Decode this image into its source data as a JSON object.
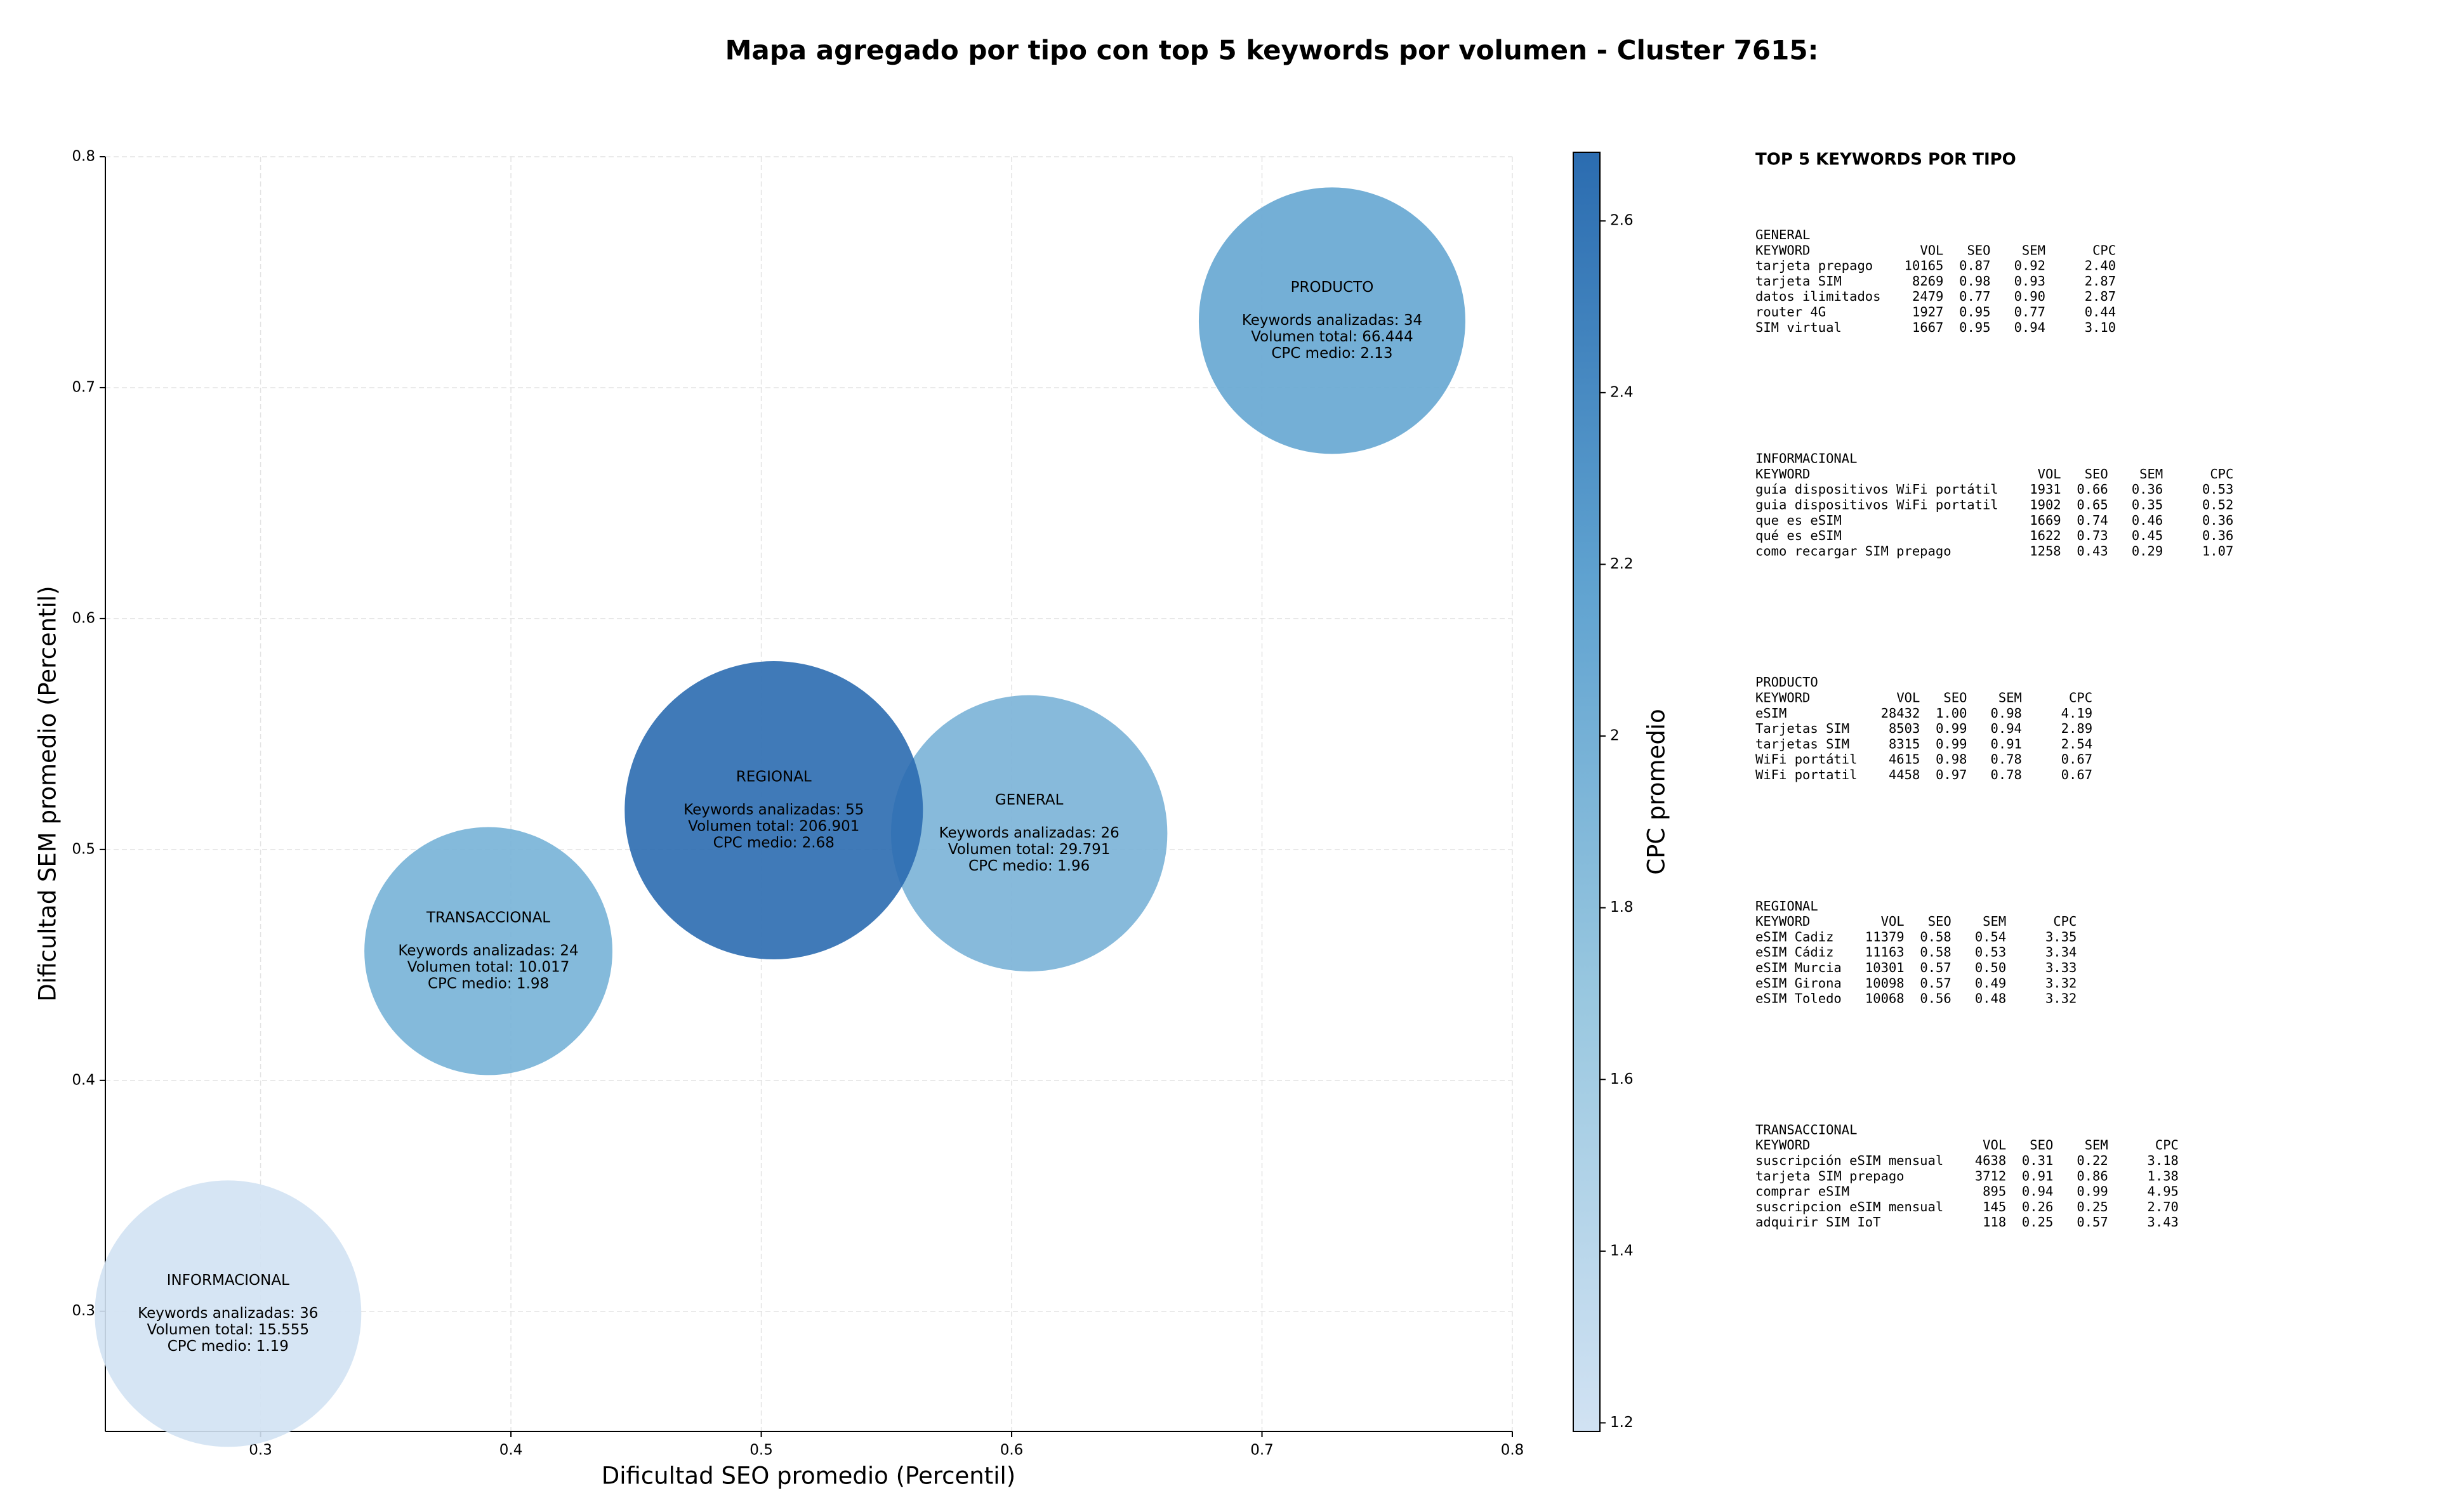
{
  "chart_data": {
    "type": "bubble",
    "title": "Mapa agregado por tipo con top 5 keywords por volumen - Cluster 7615:",
    "x_label": "Dificultad SEO promedio (Percentil)",
    "y_label": "Dificultad SEM promedio (Percentil)",
    "xlim": [
      0.238,
      0.8
    ],
    "ylim": [
      0.248,
      0.8
    ],
    "xticks": [
      0.3,
      0.4,
      0.5,
      0.6,
      0.7,
      0.8
    ],
    "yticks": [
      0.3,
      0.4,
      0.5,
      0.6,
      0.7,
      0.8
    ],
    "grid": true,
    "series": [
      {
        "names": [
          "INFORMACIONAL",
          "TRANSACCIONAL",
          "GENERAL",
          "REGIONAL",
          "PRODUCTO"
        ],
        "x": [
          0.287,
          0.391,
          0.607,
          0.505,
          0.728
        ],
        "values": [
          0.299,
          0.456,
          0.507,
          0.517,
          0.729
        ],
        "sizes": [
          91450,
          79200,
          98300,
          114500,
          91450
        ],
        "colors": [
          1.19,
          1.98,
          1.96,
          2.68,
          2.13
        ],
        "labels": [
          [
            "Keywords analizadas: 36",
            "Volumen total: 15.555",
            "CPC medio: 1.19"
          ],
          [
            "Keywords analizadas: 24",
            "Volumen total: 10.017",
            "CPC medio: 1.98"
          ],
          [
            "Keywords analizadas: 26",
            "Volumen total: 29.791",
            "CPC medio: 1.96"
          ],
          [
            "Keywords analizadas: 55",
            "Volumen total: 206.901",
            "CPC medio: 2.68"
          ],
          [
            "Keywords analizadas: 34",
            "Volumen total: 66.444",
            "CPC medio: 2.13"
          ]
        ]
      }
    ],
    "colorbar": {
      "label": "CPC promedio",
      "clim": [
        1.19,
        2.68
      ],
      "ticks": [
        1.2,
        1.4,
        1.6,
        1.8,
        2.0,
        2.2,
        2.4,
        2.6
      ],
      "colormap": [
        "#d1e2f3",
        "#9ac8e0",
        "#5fa2d0",
        "#2b6cb0"
      ]
    }
  },
  "keyword_panel": {
    "title": "TOP 5 KEYWORDS POR TIPO",
    "columns": [
      "KEYWORD",
      "VOL",
      "SEO",
      "SEM",
      "CPC"
    ],
    "groups": [
      {
        "name": "GENERAL",
        "rows": [
          [
            "tarjeta prepago",
            "10165",
            "0.87",
            "0.92",
            "2.40"
          ],
          [
            "tarjeta SIM",
            "8269",
            "0.98",
            "0.93",
            "2.87"
          ],
          [
            "datos ilimitados",
            "2479",
            "0.77",
            "0.90",
            "2.87"
          ],
          [
            "router 4G",
            "1927",
            "0.95",
            "0.77",
            "0.44"
          ],
          [
            "SIM virtual",
            "1667",
            "0.95",
            "0.94",
            "3.10"
          ]
        ]
      },
      {
        "name": "INFORMACIONAL",
        "rows": [
          [
            "guía dispositivos WiFi portátil",
            "1931",
            "0.66",
            "0.36",
            "0.53"
          ],
          [
            "guia dispositivos WiFi portatil",
            "1902",
            "0.65",
            "0.35",
            "0.52"
          ],
          [
            "que es eSIM",
            "1669",
            "0.74",
            "0.46",
            "0.36"
          ],
          [
            "qué es eSIM",
            "1622",
            "0.73",
            "0.45",
            "0.36"
          ],
          [
            "como recargar SIM prepago",
            "1258",
            "0.43",
            "0.29",
            "1.07"
          ]
        ]
      },
      {
        "name": "PRODUCTO",
        "rows": [
          [
            "eSIM",
            "28432",
            "1.00",
            "0.98",
            "4.19"
          ],
          [
            "Tarjetas SIM",
            "8503",
            "0.99",
            "0.94",
            "2.89"
          ],
          [
            "tarjetas SIM",
            "8315",
            "0.99",
            "0.91",
            "2.54"
          ],
          [
            "WiFi portátil",
            "4615",
            "0.98",
            "0.78",
            "0.67"
          ],
          [
            "WiFi portatil",
            "4458",
            "0.97",
            "0.78",
            "0.67"
          ]
        ]
      },
      {
        "name": "REGIONAL",
        "rows": [
          [
            "eSIM Cadiz",
            "11379",
            "0.58",
            "0.54",
            "3.35"
          ],
          [
            "eSIM Cádiz",
            "11163",
            "0.58",
            "0.53",
            "3.34"
          ],
          [
            "eSIM Murcia",
            "10301",
            "0.57",
            "0.50",
            "3.33"
          ],
          [
            "eSIM Girona",
            "10098",
            "0.57",
            "0.49",
            "3.32"
          ],
          [
            "eSIM Toledo",
            "10068",
            "0.56",
            "0.48",
            "3.32"
          ]
        ]
      },
      {
        "name": "TRANSACCIONAL",
        "rows": [
          [
            "suscripción eSIM mensual",
            "4638",
            "0.31",
            "0.22",
            "3.18"
          ],
          [
            "tarjeta SIM prepago",
            "3712",
            "0.91",
            "0.86",
            "1.38"
          ],
          [
            "comprar eSIM",
            "895",
            "0.94",
            "0.99",
            "4.95"
          ],
          [
            "suscripcion eSIM mensual",
            "145",
            "0.26",
            "0.25",
            "2.70"
          ],
          [
            "adquirir SIM IoT",
            "118",
            "0.25",
            "0.57",
            "3.43"
          ]
        ]
      }
    ]
  }
}
